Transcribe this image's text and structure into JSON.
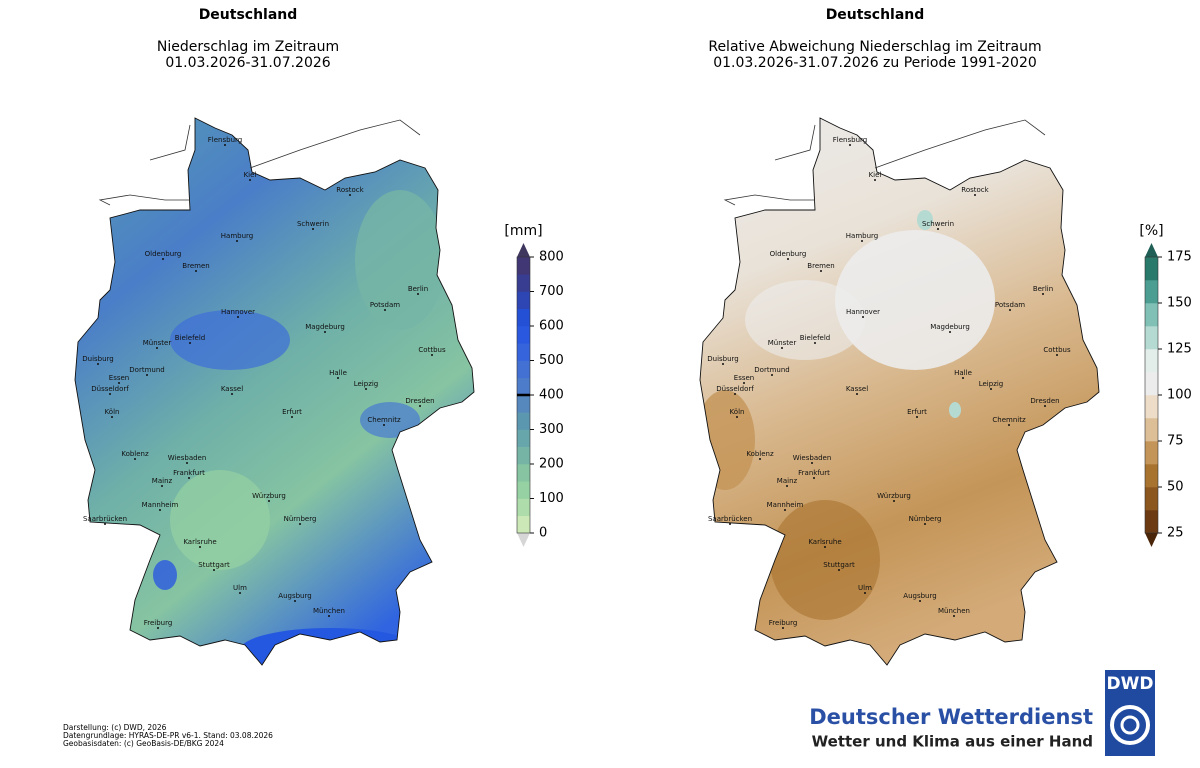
{
  "maps": [
    {
      "heading": "Deutschland",
      "title_lines": [
        "Niederschlag im Zeitraum",
        "01.03.2026-31.07.2026"
      ],
      "colorbar": {
        "unit": "[mm]",
        "lim": [
          0,
          800
        ],
        "ticks": [
          0,
          100,
          200,
          300,
          400,
          500,
          600,
          700,
          800
        ],
        "marker": 400,
        "colors": [
          "#cbe8b6",
          "#aedcaa",
          "#96d1a3",
          "#86c4a2",
          "#76b5a6",
          "#67a6aa",
          "#5c97b0",
          "#5688bd",
          "#4d7cca",
          "#4270d3",
          "#3564dd",
          "#2a59e0",
          "#2450d6",
          "#2d46b4",
          "#383d92",
          "#413774"
        ],
        "over_color": "#40375f",
        "under_color": "#d6d6d6"
      }
    },
    {
      "heading": "Deutschland",
      "title_lines": [
        "Relative Abweichung Niederschlag im Zeitraum",
        "01.03.2026-31.07.2026 zu Periode 1991-2020"
      ],
      "colorbar": {
        "unit": "[%]",
        "lim": [
          25,
          175
        ],
        "ticks": [
          25,
          50,
          75,
          100,
          125,
          150,
          175
        ],
        "colors": [
          "#6b3a12",
          "#8c561f",
          "#a8732f",
          "#c49558",
          "#dcbf96",
          "#ecdcc8",
          "#ececec",
          "#e3eeeb",
          "#b4dad2",
          "#80c0b5",
          "#4d9e92",
          "#2a7a6c"
        ],
        "over_color": "#1f5f55",
        "under_color": "#4a2508"
      }
    }
  ],
  "cities": [
    "Flensburg",
    "Kiel",
    "Rostock",
    "Hamburg",
    "Schwerin",
    "Oldenburg",
    "Bremen",
    "Berlin",
    "Potsdam",
    "Hannover",
    "Magdeburg",
    "Münster",
    "Bielefeld",
    "Dortmund",
    "Duisburg",
    "Essen",
    "Düsseldorf",
    "Cottbus",
    "Halle",
    "Leipzig",
    "Kassel",
    "Dresden",
    "Köln",
    "Erfurt",
    "Chemnitz",
    "Koblenz",
    "Wiesbaden",
    "Frankfurt",
    "Mainz",
    "Würzburg",
    "Mannheim",
    "Nürnberg",
    "Saarbrücken",
    "Karlsruhe",
    "Stuttgart",
    "Ulm",
    "Augsburg",
    "München",
    "Freiburg"
  ],
  "footer": [
    "Darstellung: (c) DWD, 2026",
    "Datengrundlage: HYRAS-DE-PR v6-1. Stand: 03.08.2026",
    "Geobasisdaten: (c) GeoBasis-DE/BKG 2024"
  ],
  "logo": {
    "badge": "DWD",
    "name": "Deutscher Wetterdienst",
    "slogan": "Wetter und Klima aus einer Hand"
  }
}
